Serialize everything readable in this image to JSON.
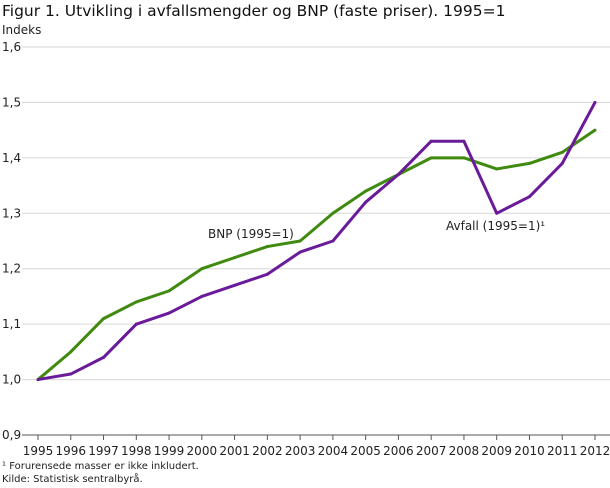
{
  "chart_data": {
    "type": "line",
    "title": "Figur 1. Utvikling i avfallsmengder og BNP (faste priser). 1995=1",
    "ylabel": "Indeks",
    "xlabel": "",
    "ylim": [
      0.9,
      1.6
    ],
    "yticks": [
      "0,9",
      "1,0",
      "1,1",
      "1,2",
      "1,3",
      "1,4",
      "1,5",
      "1,6"
    ],
    "ytick_values": [
      0.9,
      1.0,
      1.1,
      1.2,
      1.3,
      1.4,
      1.5,
      1.6
    ],
    "x": [
      "1995",
      "1996",
      "1997",
      "1998",
      "1999",
      "2000",
      "2001",
      "2002",
      "2003",
      "2004",
      "2005",
      "2006",
      "2007",
      "2008",
      "2009",
      "2010",
      "2011",
      "2012"
    ],
    "grid": true,
    "series": [
      {
        "name": "BNP (1995=1)",
        "label": "BNP (1995=1)",
        "color": "#3f8a0f",
        "values": [
          1.0,
          1.05,
          1.11,
          1.14,
          1.16,
          1.2,
          1.22,
          1.24,
          1.25,
          1.3,
          1.34,
          1.37,
          1.4,
          1.4,
          1.38,
          1.39,
          1.41,
          1.45
        ]
      },
      {
        "name": "Avfall (1995=1)",
        "label": "Avfall (1995=1)¹",
        "color": "#6a1b9a",
        "values": [
          1.0,
          1.01,
          1.04,
          1.1,
          1.12,
          1.15,
          1.17,
          1.19,
          1.23,
          1.25,
          1.32,
          1.37,
          1.43,
          1.43,
          1.3,
          1.33,
          1.39,
          1.5
        ]
      }
    ],
    "footnotes": [
      "¹ Forurensede masser er ikke inkludert.",
      "Kilde: Statistisk sentralbyrå."
    ]
  }
}
